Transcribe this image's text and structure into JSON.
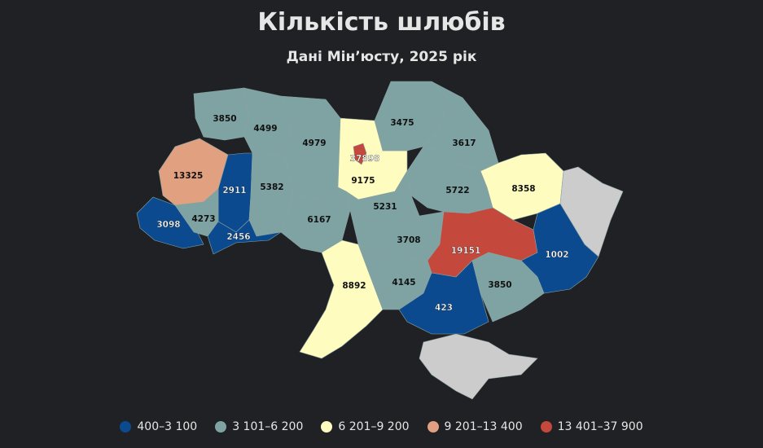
{
  "header": {
    "title": "Кількість шлюбів",
    "subtitle": "Дані Мін’юсту, 2025 рік"
  },
  "legend": [
    {
      "label": "400–3 100",
      "color": "#0b4a8f"
    },
    {
      "label": "3 101–6 200",
      "color": "#7fa3a3"
    },
    {
      "label": "6 201–9 200",
      "color": "#fffcc0"
    },
    {
      "label": "9 201–13 400",
      "color": "#e1a080"
    },
    {
      "label": "13 401–37 900",
      "color": "#c4483b"
    }
  ],
  "regions": [
    {
      "name": "Волинська",
      "value": "3850",
      "color": "#7fa3a3"
    },
    {
      "name": "Рівненська",
      "value": "4499",
      "color": "#7fa3a3"
    },
    {
      "name": "Житомирська",
      "value": "4979",
      "color": "#7fa3a3"
    },
    {
      "name": "Київська",
      "value": "9175",
      "color": "#fffcc0"
    },
    {
      "name": "м. Київ",
      "value": "37898",
      "color": "#c4483b"
    },
    {
      "name": "Чернігівська",
      "value": "3475",
      "color": "#7fa3a3"
    },
    {
      "name": "Сумська",
      "value": "3617",
      "color": "#7fa3a3"
    },
    {
      "name": "Харківська",
      "value": "8358",
      "color": "#fffcc0"
    },
    {
      "name": "Полтавська",
      "value": "5722",
      "color": "#7fa3a3"
    },
    {
      "name": "Черкаська",
      "value": "5231",
      "color": "#7fa3a3"
    },
    {
      "name": "Львівська",
      "value": "13325",
      "color": "#e1a080"
    },
    {
      "name": "Тернопільська",
      "value": "2911",
      "color": "#0b4a8f"
    },
    {
      "name": "Хмельницька",
      "value": "5382",
      "color": "#7fa3a3"
    },
    {
      "name": "Вінницька",
      "value": "6167",
      "color": "#7fa3a3"
    },
    {
      "name": "Закарпатська",
      "value": "3098",
      "color": "#0b4a8f"
    },
    {
      "name": "Івано-Франківська",
      "value": "4273",
      "color": "#7fa3a3"
    },
    {
      "name": "Чернівецька",
      "value": "2456",
      "color": "#0b4a8f"
    },
    {
      "name": "Кіровоградська",
      "value": "3708",
      "color": "#7fa3a3"
    },
    {
      "name": "Дніпропетровська",
      "value": "19151",
      "color": "#c4483b"
    },
    {
      "name": "Донецька",
      "value": "1002",
      "color": "#0b4a8f"
    },
    {
      "name": "Луганська",
      "value": "",
      "color": "#cccccc"
    },
    {
      "name": "Одеська",
      "value": "8892",
      "color": "#fffcc0"
    },
    {
      "name": "Миколаївська",
      "value": "4145",
      "color": "#7fa3a3"
    },
    {
      "name": "Херсонська",
      "value": "423",
      "color": "#0b4a8f"
    },
    {
      "name": "Запорізька",
      "value": "3850",
      "color": "#7fa3a3"
    },
    {
      "name": "АР Крим",
      "value": "",
      "color": "#cccccc"
    }
  ]
}
